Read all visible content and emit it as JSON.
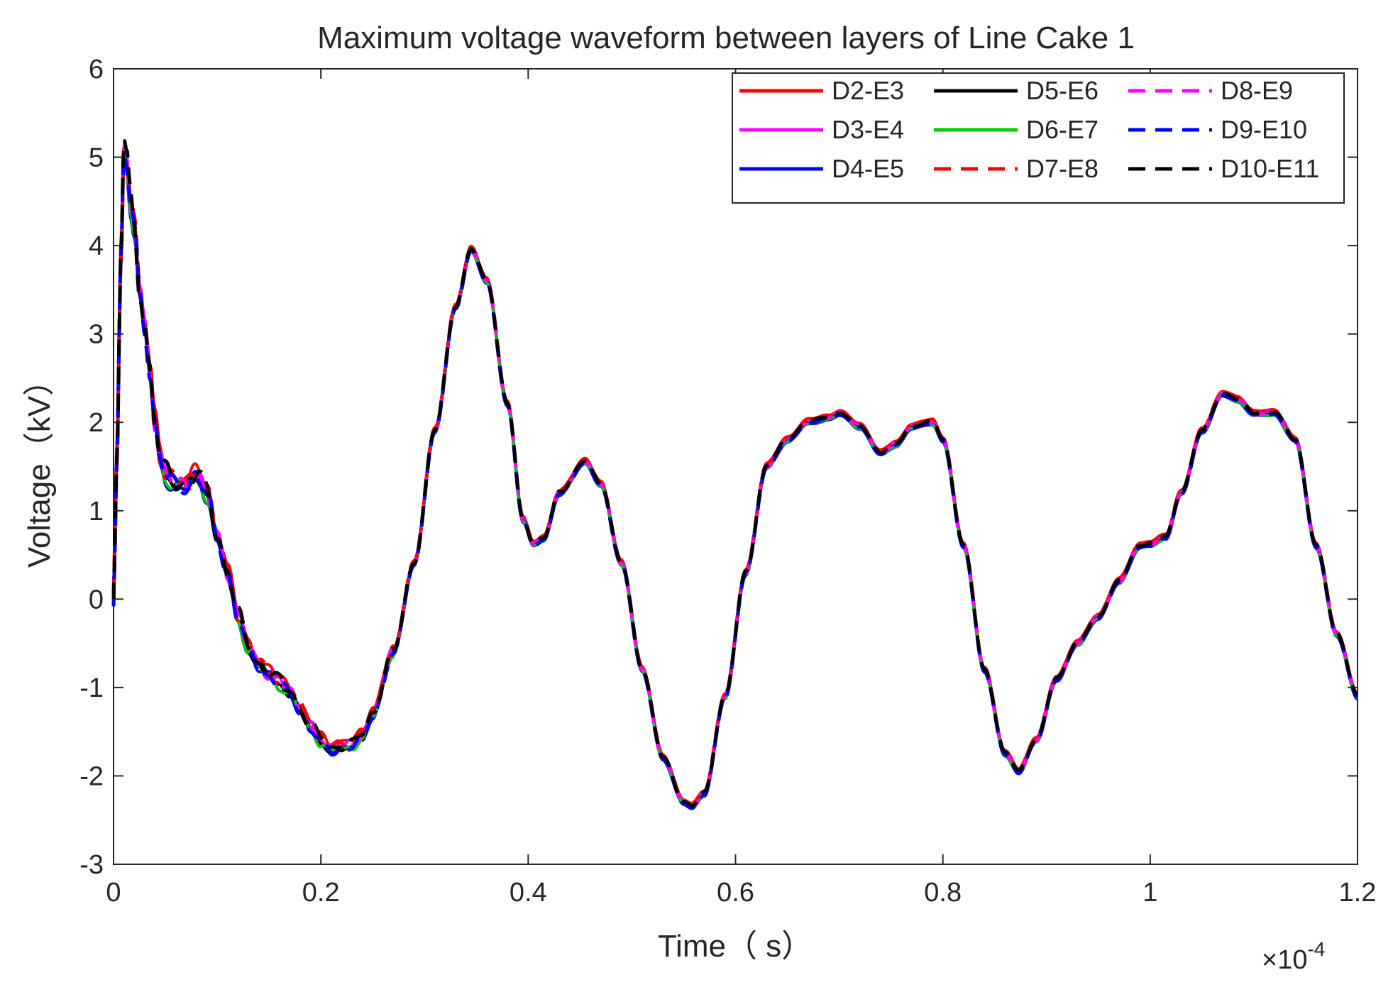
{
  "chart_data": {
    "type": "line",
    "title": "Maximum voltage waveform between layers of Line Cake 1",
    "xlabel": "Time（ s）",
    "ylabel": "Voltage（kV）",
    "x_exponent_label": "×10",
    "x_exponent_power": "-4",
    "xlim": [
      0,
      1.2
    ],
    "ylim": [
      -3,
      6
    ],
    "x_scale": "1e-4",
    "x_ticks": [
      0,
      0.2,
      0.4,
      0.6,
      0.8,
      1.0,
      1.2
    ],
    "x_tick_labels": [
      "0",
      "0.2",
      "0.4",
      "0.6",
      "0.8",
      "1",
      "1.2"
    ],
    "y_ticks": [
      -3,
      -2,
      -1,
      0,
      1,
      2,
      3,
      4,
      5,
      6
    ],
    "y_tick_labels": [
      "-3",
      "-2",
      "-1",
      "0",
      "1",
      "2",
      "3",
      "4",
      "5",
      "6"
    ],
    "grid": false,
    "legend_position": "top-right",
    "series": [
      {
        "name": "D2-E3",
        "color": "#ff0000",
        "dash": "solid",
        "offset": 0.06,
        "wiggle": 0.12
      },
      {
        "name": "D3-E4",
        "color": "#ff00ff",
        "dash": "solid",
        "offset": 0.03,
        "wiggle": 0.1
      },
      {
        "name": "D4-E5",
        "color": "#0000ff",
        "dash": "solid",
        "offset": -0.04,
        "wiggle": 0.11
      },
      {
        "name": "D5-E6",
        "color": "#000000",
        "dash": "solid",
        "offset": -0.02,
        "wiggle": 0.09
      },
      {
        "name": "D6-E7",
        "color": "#00cc00",
        "dash": "solid",
        "offset": -0.03,
        "wiggle": 0.1
      },
      {
        "name": "D7-E8",
        "color": "#ff0000",
        "dash": "dashed",
        "offset": 0.04,
        "wiggle": 0.12
      },
      {
        "name": "D8-E9",
        "color": "#ff00ff",
        "dash": "dashed",
        "offset": 0.0,
        "wiggle": 0.1
      },
      {
        "name": "D9-E10",
        "color": "#0000ff",
        "dash": "dashed",
        "offset": -0.02,
        "wiggle": 0.11
      },
      {
        "name": "D10-E11",
        "color": "#000000",
        "dash": "dashed",
        "offset": 0.02,
        "wiggle": 0.14
      }
    ],
    "base_waveform": {
      "x": [
        0,
        0.003,
        0.007,
        0.01,
        0.013,
        0.016,
        0.02,
        0.025,
        0.03,
        0.035,
        0.04,
        0.045,
        0.05,
        0.06,
        0.07,
        0.08,
        0.09,
        0.1,
        0.11,
        0.12,
        0.13,
        0.14,
        0.15,
        0.16,
        0.17,
        0.18,
        0.19,
        0.2,
        0.21,
        0.22,
        0.23,
        0.24,
        0.25,
        0.27,
        0.29,
        0.31,
        0.33,
        0.345,
        0.36,
        0.38,
        0.395,
        0.405,
        0.415,
        0.43,
        0.455,
        0.47,
        0.49,
        0.51,
        0.53,
        0.55,
        0.558,
        0.57,
        0.59,
        0.61,
        0.63,
        0.65,
        0.67,
        0.69,
        0.7,
        0.72,
        0.74,
        0.755,
        0.77,
        0.79,
        0.8,
        0.82,
        0.84,
        0.86,
        0.873,
        0.89,
        0.91,
        0.93,
        0.95,
        0.97,
        0.99,
        1.0,
        1.015,
        1.03,
        1.05,
        1.07,
        1.085,
        1.1,
        1.12,
        1.14,
        1.16,
        1.18,
        1.2
      ],
      "y": [
        0,
        1.5,
        3.8,
        5.1,
        4.9,
        4.5,
        4.2,
        3.5,
        3.1,
        2.6,
        2.0,
        1.6,
        1.4,
        1.3,
        1.3,
        1.4,
        1.2,
        0.7,
        0.3,
        -0.2,
        -0.55,
        -0.75,
        -0.85,
        -0.95,
        -1.05,
        -1.25,
        -1.45,
        -1.6,
        -1.7,
        -1.68,
        -1.65,
        -1.55,
        -1.3,
        -0.6,
        0.4,
        1.9,
        3.3,
        3.95,
        3.6,
        2.2,
        0.9,
        0.62,
        0.68,
        1.2,
        1.55,
        1.3,
        0.4,
        -0.8,
        -1.8,
        -2.3,
        -2.35,
        -2.2,
        -1.1,
        0.3,
        1.5,
        1.8,
        2.0,
        2.05,
        2.1,
        1.95,
        1.65,
        1.75,
        1.95,
        2.0,
        1.8,
        0.6,
        -0.8,
        -1.75,
        -1.95,
        -1.6,
        -0.9,
        -0.5,
        -0.2,
        0.2,
        0.6,
        0.62,
        0.7,
        1.2,
        1.9,
        2.32,
        2.25,
        2.1,
        2.1,
        1.8,
        0.6,
        -0.4,
        -1.1
      ]
    }
  }
}
